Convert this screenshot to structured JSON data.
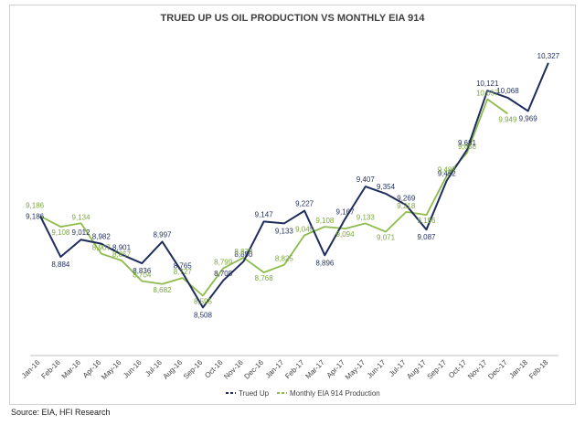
{
  "chart_data": {
    "type": "line",
    "title": "TRUED UP US OIL PRODUCTION VS MONTHLY EIA 914",
    "categories": [
      "Jan-16",
      "Feb-16",
      "Mar-16",
      "Apr-16",
      "May-16",
      "Jun-16",
      "Jul-16",
      "Aug-16",
      "Sep-16",
      "Oct-16",
      "Nov-16",
      "Dec-16",
      "Jan-17",
      "Feb-17",
      "Mar-17",
      "Apr-17",
      "May-17",
      "Jun-17",
      "Jul-17",
      "Aug-17",
      "Sep-17",
      "Oct-17",
      "Nov-17",
      "Dec-17",
      "Jan-18",
      "Feb-18"
    ],
    "series": [
      {
        "name": "Trued Up",
        "color": "#1f2d5c",
        "values": [
          9186,
          8884,
          9012,
          8982,
          8901,
          8836,
          8997,
          8765,
          8508,
          8708,
          8850,
          9147,
          9133,
          9227,
          8896,
          9167,
          9407,
          9354,
          9269,
          9087,
          9452,
          9681,
          10121,
          10068,
          9969,
          10327
        ],
        "labels": [
          "9,186",
          "8,884",
          "9,012",
          "8,982",
          "8,901",
          "8,836",
          "8,997",
          "8,765",
          "8,508",
          "8,708",
          "8,850",
          "9,147",
          "9,133",
          "9,227",
          "8,896",
          "9,167",
          "9,407",
          "9,354",
          "9,269",
          "9,087",
          "9,452",
          "9,681",
          "10,121",
          "10,068",
          "9,969",
          "10,327"
        ]
      },
      {
        "name": "Monthly EIA 914 Production",
        "color": "#8dbb4c",
        "values": [
          9186,
          9108,
          9134,
          8907,
          8857,
          8704,
          8682,
          8727,
          8595,
          8799,
          8878,
          8768,
          8825,
          9045,
          9108,
          9094,
          9133,
          9071,
          9218,
          9196,
          9487,
          9658,
          10057,
          9949,
          null,
          null
        ],
        "labels": [
          "9,186",
          "9,108",
          "9,134",
          "8,907",
          "8,857",
          "8,704",
          "8,682",
          "8,727",
          "8,595",
          "8,799",
          "8,878",
          "8,768",
          "8,825",
          "9,045",
          "9,108",
          "9,094",
          "9,133",
          "9,071",
          "9,218",
          "9,196",
          "9,487",
          "9,658",
          "10,057",
          "9,949",
          "",
          ""
        ]
      }
    ],
    "ylim": [
      8150,
      10550
    ],
    "grid": false,
    "legend_position": "bottom",
    "xlabel": "",
    "ylabel": ""
  },
  "legend": {
    "items": [
      {
        "label": "Trued Up",
        "color": "#1f2d5c"
      },
      {
        "label": "Monthly EIA 914 Production",
        "color": "#8dbb4c"
      }
    ]
  },
  "source": "Source: EIA, HFI Research"
}
